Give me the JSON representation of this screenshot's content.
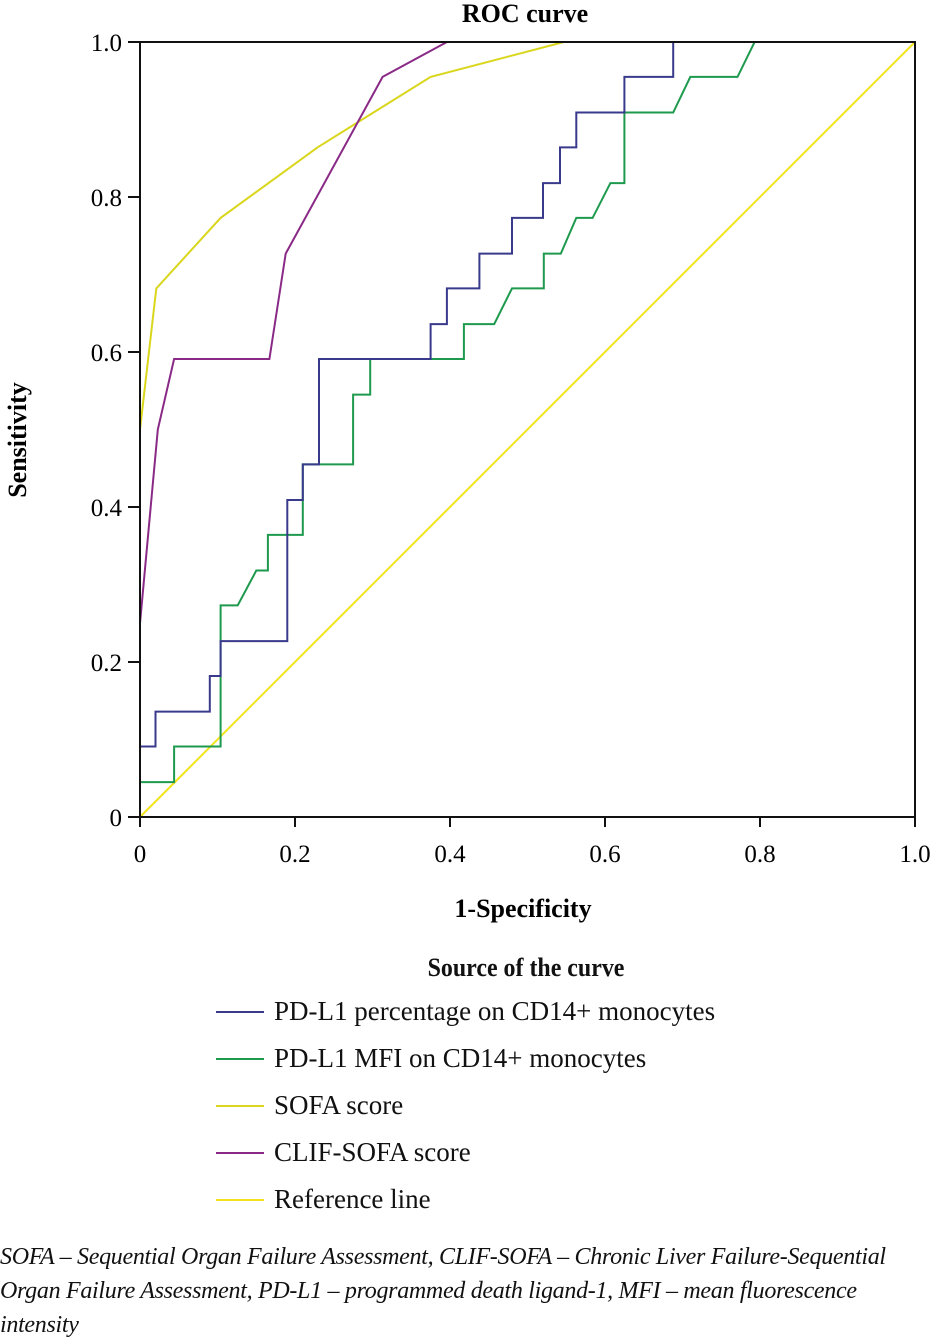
{
  "chart_data": {
    "type": "line",
    "title": "ROC curve",
    "xlabel": "1-Specificity",
    "ylabel": "Sensitivity",
    "xlim": [
      0,
      1.0
    ],
    "ylim": [
      0,
      1.0
    ],
    "xticks": [
      "0",
      "0.2",
      "0.4",
      "0.6",
      "0.8",
      "1.0"
    ],
    "yticks": [
      "0",
      "0.2",
      "0.4",
      "0.6",
      "0.8",
      "1.0"
    ],
    "grid": false,
    "legend_title": "Source of the curve",
    "legend_position": "bottom",
    "series": [
      {
        "name": "PD-L1 percentage on CD14+ monocytes",
        "color": "#3a3a8c",
        "points": [
          [
            0,
            0
          ],
          [
            0,
            0.091
          ],
          [
            0.02,
            0.091
          ],
          [
            0.02,
            0.136
          ],
          [
            0.09,
            0.136
          ],
          [
            0.09,
            0.182
          ],
          [
            0.104,
            0.182
          ],
          [
            0.104,
            0.227
          ],
          [
            0.19,
            0.227
          ],
          [
            0.19,
            0.409
          ],
          [
            0.21,
            0.409
          ],
          [
            0.21,
            0.455
          ],
          [
            0.231,
            0.455
          ],
          [
            0.231,
            0.591
          ],
          [
            0.375,
            0.591
          ],
          [
            0.375,
            0.636
          ],
          [
            0.396,
            0.636
          ],
          [
            0.396,
            0.682
          ],
          [
            0.438,
            0.682
          ],
          [
            0.438,
            0.727
          ],
          [
            0.48,
            0.727
          ],
          [
            0.48,
            0.773
          ],
          [
            0.52,
            0.773
          ],
          [
            0.52,
            0.818
          ],
          [
            0.542,
            0.818
          ],
          [
            0.542,
            0.864
          ],
          [
            0.563,
            0.864
          ],
          [
            0.563,
            0.909
          ],
          [
            0.625,
            0.909
          ],
          [
            0.625,
            0.955
          ],
          [
            0.688,
            0.955
          ],
          [
            0.688,
            1.0
          ],
          [
            1.0,
            1.0
          ]
        ]
      },
      {
        "name": "PD-L1 MFI on CD14+ monocytes",
        "color": "#1e9a4e",
        "points": [
          [
            0,
            0
          ],
          [
            0,
            0.045
          ],
          [
            0.044,
            0.045
          ],
          [
            0.044,
            0.091
          ],
          [
            0.104,
            0.091
          ],
          [
            0.104,
            0.273
          ],
          [
            0.126,
            0.273
          ],
          [
            0.15,
            0.318
          ],
          [
            0.165,
            0.318
          ],
          [
            0.165,
            0.364
          ],
          [
            0.21,
            0.364
          ],
          [
            0.21,
            0.455
          ],
          [
            0.275,
            0.455
          ],
          [
            0.275,
            0.545
          ],
          [
            0.297,
            0.545
          ],
          [
            0.297,
            0.591
          ],
          [
            0.418,
            0.591
          ],
          [
            0.418,
            0.636
          ],
          [
            0.457,
            0.636
          ],
          [
            0.48,
            0.682
          ],
          [
            0.521,
            0.682
          ],
          [
            0.521,
            0.727
          ],
          [
            0.543,
            0.727
          ],
          [
            0.563,
            0.773
          ],
          [
            0.584,
            0.773
          ],
          [
            0.607,
            0.818
          ],
          [
            0.625,
            0.818
          ],
          [
            0.625,
            0.909
          ],
          [
            0.688,
            0.909
          ],
          [
            0.71,
            0.955
          ],
          [
            0.771,
            0.955
          ],
          [
            0.793,
            1.0
          ],
          [
            1.0,
            1.0
          ]
        ]
      },
      {
        "name": "SOFA score",
        "color": "#d9d61c",
        "points": [
          [
            0,
            0
          ],
          [
            0,
            0.5
          ],
          [
            0.021,
            0.682
          ],
          [
            0.104,
            0.773
          ],
          [
            0.229,
            0.864
          ],
          [
            0.375,
            0.955
          ],
          [
            0.547,
            1.0
          ],
          [
            1.0,
            1.0
          ]
        ]
      },
      {
        "name": "CLIF-SOFA score",
        "color": "#8a2a87",
        "points": [
          [
            0,
            0
          ],
          [
            0,
            0.25
          ],
          [
            0.023,
            0.5
          ],
          [
            0.044,
            0.591
          ],
          [
            0.167,
            0.591
          ],
          [
            0.188,
            0.727
          ],
          [
            0.313,
            0.955
          ],
          [
            0.396,
            1.0
          ],
          [
            1.0,
            1.0
          ]
        ]
      },
      {
        "name": "Reference line",
        "color": "#f2e31c",
        "points": [
          [
            0,
            0
          ],
          [
            1.0,
            1.0
          ]
        ]
      }
    ]
  },
  "caption": "SOFA – Sequential Organ Failure Assessment, CLIF-SOFA – Chronic Liver Failure-Sequential Organ Failure Assessment, PD-L1 – programmed death ligand-1, MFI – mean fluorescence intensity"
}
